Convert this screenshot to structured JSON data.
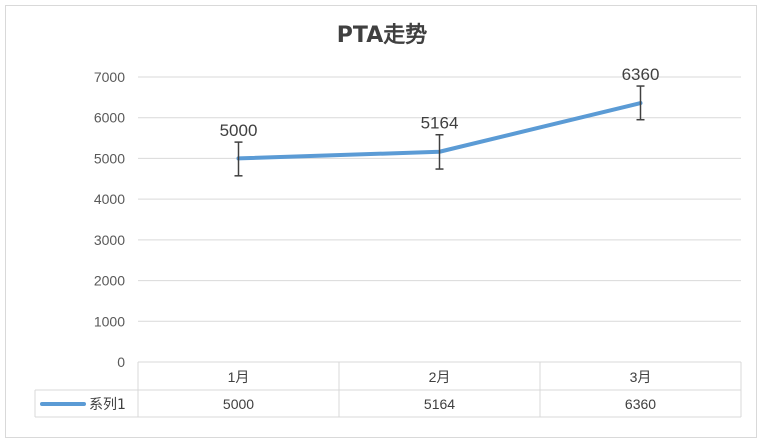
{
  "chart_data": {
    "type": "line",
    "title": "PTA走势",
    "categories": [
      "1月",
      "2月",
      "3月"
    ],
    "series": [
      {
        "name": "系列1",
        "values": [
          5000,
          5164,
          6360
        ],
        "color": "#5b9bd5"
      }
    ],
    "error_bars": [
      {
        "low": 4573,
        "high": 5401
      },
      {
        "low": 4739,
        "high": 5582
      },
      {
        "low": 5951,
        "high": 6778
      }
    ],
    "ylim": [
      0,
      7000
    ],
    "yticks": [
      0,
      1000,
      2000,
      3000,
      4000,
      5000,
      6000,
      7000
    ],
    "grid": true,
    "data_table": true,
    "data_labels": [
      "5000",
      "5164",
      "6360"
    ],
    "xlabel": "",
    "ylabel": ""
  }
}
